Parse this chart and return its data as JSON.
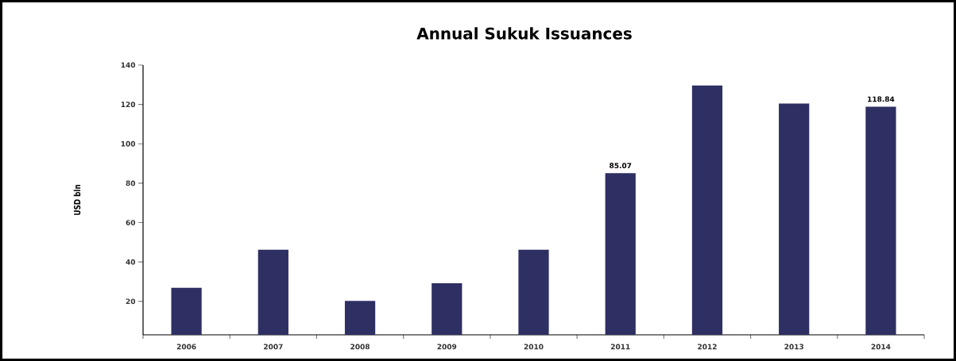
{
  "chart_data": {
    "type": "bar",
    "title": "Annual Sukuk Issuances",
    "ylabel": "USD bln",
    "categories": [
      "2006",
      "2007",
      "2008",
      "2009",
      "2010",
      "2011",
      "2012",
      "2013",
      "2014"
    ],
    "values": [
      26.9,
      46.2,
      20.2,
      29.2,
      46.2,
      85.07,
      129.6,
      120.5,
      118.84
    ],
    "value_labels": [
      null,
      null,
      null,
      null,
      null,
      "85.07",
      null,
      null,
      "118.84"
    ],
    "color": "#2e2f62",
    "ylim": [
      3,
      140
    ],
    "yticks": [
      20,
      40,
      60,
      80,
      100,
      120,
      140
    ]
  }
}
